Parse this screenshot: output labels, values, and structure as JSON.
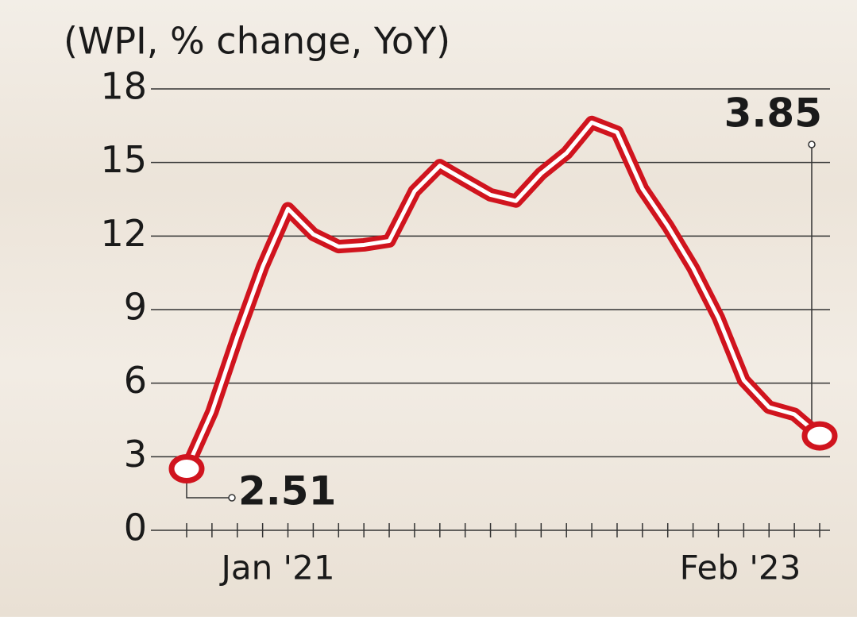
{
  "chart_data": {
    "type": "line",
    "title": "(WPI, % change, YoY)",
    "categories": [
      "Jan '21",
      null,
      null,
      null,
      null,
      null,
      null,
      null,
      null,
      null,
      null,
      null,
      null,
      null,
      null,
      null,
      null,
      null,
      null,
      null,
      null,
      null,
      null,
      null,
      null,
      "Feb '23"
    ],
    "series": [
      {
        "color": "#d0141e",
        "values": [
          2.51,
          4.83,
          7.89,
          10.74,
          13.11,
          12.07,
          11.57,
          11.64,
          11.8,
          13.83,
          14.87,
          14.27,
          13.68,
          13.43,
          14.55,
          15.38,
          16.63,
          16.23,
          13.93,
          12.41,
          10.7,
          8.67,
          6.12,
          5.02,
          4.73,
          3.85
        ]
      }
    ],
    "ylim": [
      0,
      18
    ],
    "yticks": [
      0,
      3,
      6,
      9,
      12,
      15,
      18
    ],
    "grid": true
  }
}
